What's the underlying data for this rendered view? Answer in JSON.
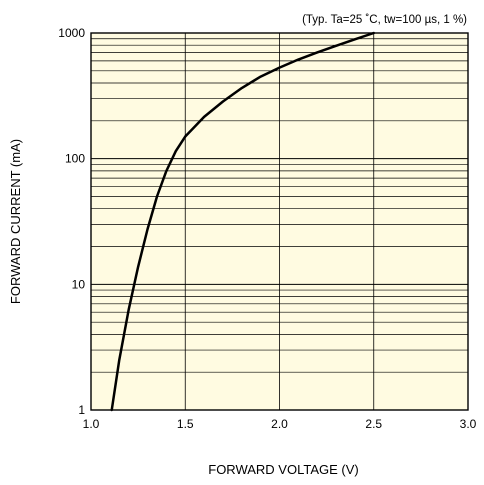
{
  "chart_data": {
    "type": "line",
    "title": "(Typ. Ta=25 ˚C, tw=100 µs, 1 %)",
    "xlabel": "FORWARD VOLTAGE (V)",
    "ylabel": "FORWARD CURRENT (mA)",
    "xlim": [
      1.0,
      3.0
    ],
    "ylim": [
      1,
      1000
    ],
    "yscale": "log",
    "xticks": [
      "1.0",
      "1.5",
      "2.0",
      "2.5",
      "3.0"
    ],
    "yticks": [
      "1",
      "10",
      "100",
      "1000"
    ],
    "grid": true,
    "plot_background": "#fffbe1",
    "line_color": "#000000",
    "series": [
      {
        "x": [
          1.11,
          1.15,
          1.2,
          1.25,
          1.3,
          1.35,
          1.4,
          1.45,
          1.5,
          1.6,
          1.7,
          1.8,
          1.9,
          2.0,
          2.1,
          2.2,
          2.3,
          2.4,
          2.5
        ],
        "y": [
          1,
          2.5,
          6.3,
          13.8,
          27.5,
          50,
          80,
          115,
          150,
          215,
          285,
          365,
          450,
          530,
          615,
          700,
          790,
          890,
          1000
        ]
      }
    ]
  }
}
